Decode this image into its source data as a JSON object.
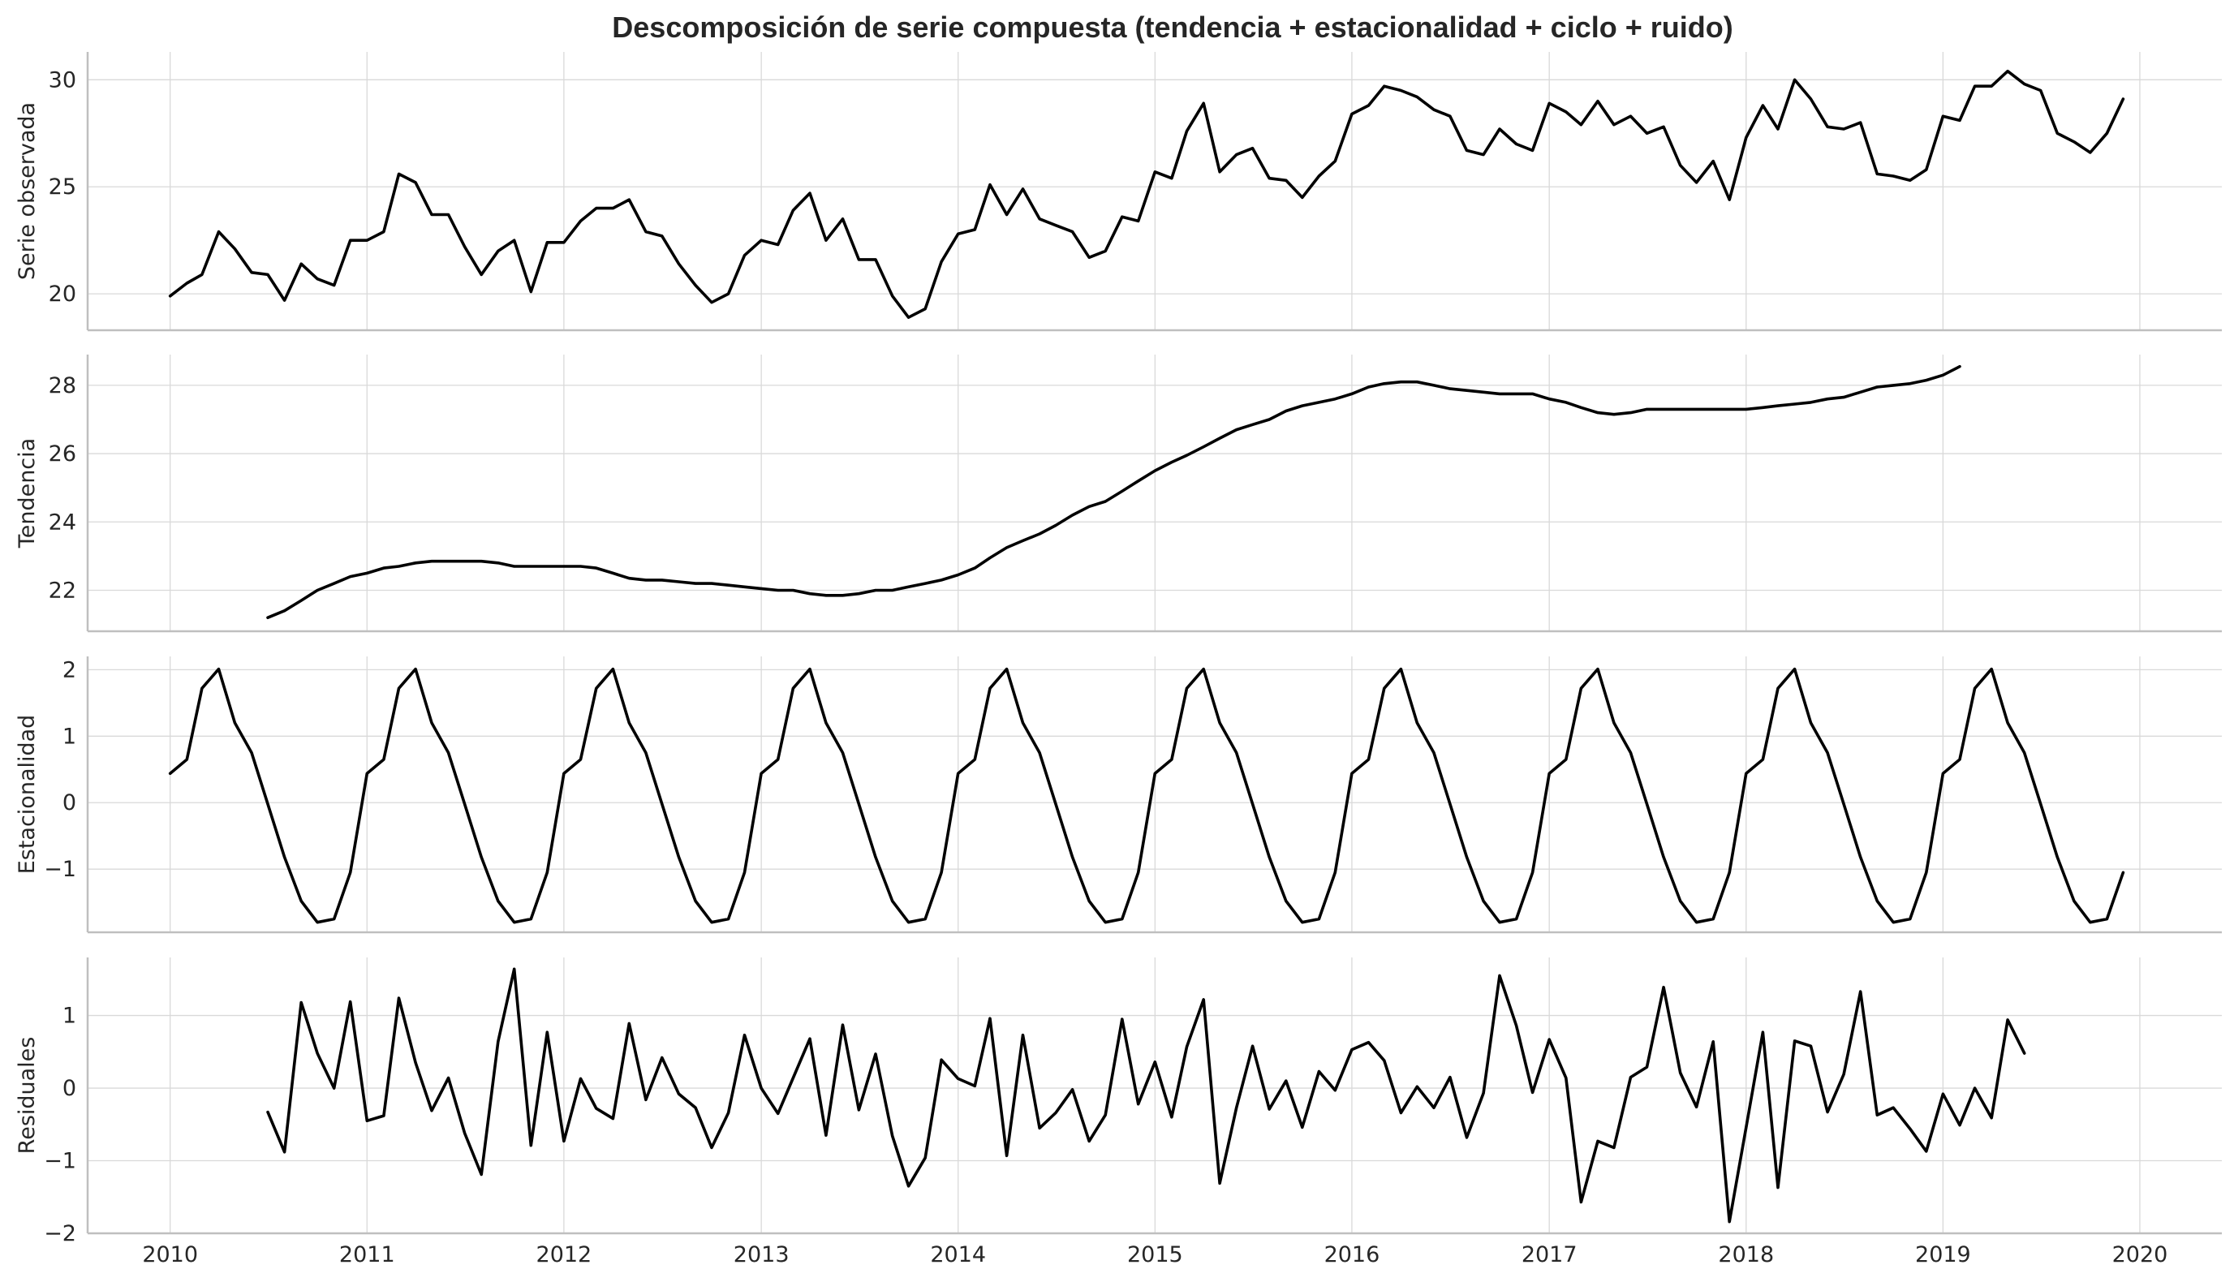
{
  "chart_data": {
    "type": "line",
    "title": "Descomposición de serie compuesta (tendencia + estacionalidad + ciclo + ruido)",
    "x_axis": {
      "type": "date",
      "range": [
        "2009-08-01",
        "2020-06-01"
      ],
      "tick_labels": [
        "2010",
        "2011",
        "2012",
        "2013",
        "2014",
        "2015",
        "2016",
        "2017",
        "2018",
        "2019",
        "2020"
      ],
      "grid": true
    },
    "series_start": "2010-01",
    "frequency": "monthly",
    "panels": [
      {
        "ylabel": "Serie observada",
        "ylim": [
          18.3,
          31.3
        ],
        "yticks": [
          20,
          25,
          30
        ],
        "ytick_labels": [
          "20",
          "25",
          "30"
        ],
        "offset_months": 0,
        "values": [
          19.9,
          20.5,
          20.9,
          22.9,
          22.1,
          21.0,
          20.9,
          19.7,
          21.4,
          20.7,
          20.4,
          22.5,
          22.5,
          22.9,
          25.6,
          25.2,
          23.7,
          23.7,
          22.2,
          20.9,
          22.0,
          22.5,
          20.1,
          22.4,
          22.4,
          23.4,
          24.0,
          24.0,
          24.4,
          22.9,
          22.7,
          21.4,
          20.4,
          19.6,
          20.0,
          21.8,
          22.5,
          22.3,
          23.9,
          24.7,
          22.5,
          23.5,
          21.6,
          21.6,
          19.9,
          18.9,
          19.3,
          21.5,
          22.8,
          23.0,
          25.1,
          23.7,
          24.9,
          23.5,
          23.2,
          22.9,
          21.7,
          22.0,
          23.6,
          23.4,
          25.7,
          25.4,
          27.6,
          28.9,
          25.7,
          26.5,
          26.8,
          25.4,
          25.3,
          24.5,
          25.5,
          26.2,
          28.4,
          28.8,
          29.7,
          29.5,
          29.2,
          28.6,
          28.3,
          26.7,
          26.5,
          27.7,
          27.0,
          26.7,
          28.9,
          28.5,
          27.9,
          29.0,
          27.9,
          28.3,
          27.5,
          27.8,
          26.0,
          25.2,
          26.2,
          24.4,
          27.3,
          28.8,
          27.7,
          30.0,
          29.1,
          27.8,
          27.7,
          28.0,
          25.6,
          25.5,
          25.3,
          25.8,
          28.3,
          28.1,
          29.7,
          29.7,
          30.4,
          29.8,
          29.5,
          27.5,
          27.1,
          26.6,
          27.5,
          29.1
        ]
      },
      {
        "ylabel": "Tendencia",
        "ylim": [
          20.8,
          28.9
        ],
        "yticks": [
          22,
          24,
          26,
          28
        ],
        "ytick_labels": [
          "22",
          "24",
          "26",
          "28"
        ],
        "offset_months": 6,
        "values": [
          21.2,
          21.4,
          21.7,
          22.0,
          22.2,
          22.4,
          22.5,
          22.65,
          22.7,
          22.8,
          22.85,
          22.85,
          22.85,
          22.85,
          22.8,
          22.7,
          22.7,
          22.7,
          22.7,
          22.7,
          22.65,
          22.5,
          22.35,
          22.3,
          22.3,
          22.25,
          22.2,
          22.2,
          22.15,
          22.1,
          22.05,
          22.0,
          22.0,
          21.9,
          21.85,
          21.85,
          21.9,
          22.0,
          22.0,
          22.1,
          22.2,
          22.3,
          22.45,
          22.65,
          22.95,
          23.25,
          23.45,
          23.65,
          23.9,
          24.2,
          24.45,
          24.6,
          24.9,
          25.2,
          25.5,
          25.75,
          25.95,
          26.2,
          26.45,
          26.7,
          26.85,
          27.0,
          27.25,
          27.4,
          27.5,
          27.6,
          27.75,
          27.95,
          28.05,
          28.1,
          28.1,
          28.0,
          27.9,
          27.85,
          27.8,
          27.75,
          27.75,
          27.75,
          27.6,
          27.5,
          27.35,
          27.2,
          27.15,
          27.2,
          27.3,
          27.3,
          27.3,
          27.3,
          27.3,
          27.3,
          27.3,
          27.35,
          27.4,
          27.45,
          27.5,
          27.6,
          27.65,
          27.8,
          27.95,
          28.0,
          28.05,
          28.15,
          28.3,
          28.55
        ]
      },
      {
        "ylabel": "Estacionalidad",
        "ylim": [
          -1.95,
          2.2
        ],
        "yticks": [
          -1,
          0,
          1,
          2
        ],
        "ytick_labels": [
          "−1",
          "0",
          "1",
          "2"
        ],
        "offset_months": 0,
        "values": [
          0.44,
          0.65,
          1.72,
          2.01,
          1.2,
          0.75,
          -0.02,
          -0.82,
          -1.48,
          -1.8,
          -1.75,
          -1.05,
          0.44,
          0.65,
          1.72,
          2.01,
          1.2,
          0.75,
          -0.02,
          -0.82,
          -1.48,
          -1.8,
          -1.75,
          -1.05,
          0.44,
          0.65,
          1.72,
          2.01,
          1.2,
          0.75,
          -0.02,
          -0.82,
          -1.48,
          -1.8,
          -1.75,
          -1.05,
          0.44,
          0.65,
          1.72,
          2.01,
          1.2,
          0.75,
          -0.02,
          -0.82,
          -1.48,
          -1.8,
          -1.75,
          -1.05,
          0.44,
          0.65,
          1.72,
          2.01,
          1.2,
          0.75,
          -0.02,
          -0.82,
          -1.48,
          -1.8,
          -1.75,
          -1.05,
          0.44,
          0.65,
          1.72,
          2.01,
          1.2,
          0.75,
          -0.02,
          -0.82,
          -1.48,
          -1.8,
          -1.75,
          -1.05,
          0.44,
          0.65,
          1.72,
          2.01,
          1.2,
          0.75,
          -0.02,
          -0.82,
          -1.48,
          -1.8,
          -1.75,
          -1.05,
          0.44,
          0.65,
          1.72,
          2.01,
          1.2,
          0.75,
          -0.02,
          -0.82,
          -1.48,
          -1.8,
          -1.75,
          -1.05,
          0.44,
          0.65,
          1.72,
          2.01,
          1.2,
          0.75,
          -0.02,
          -0.82,
          -1.48,
          -1.8,
          -1.75,
          -1.05,
          0.44,
          0.65,
          1.72,
          2.01,
          1.2,
          0.75,
          -0.02,
          -0.82,
          -1.48,
          -1.8,
          -1.75,
          -1.05
        ]
      },
      {
        "ylabel": "Residuales",
        "ylim": [
          -2.0,
          1.8
        ],
        "yticks": [
          -2,
          -1,
          0,
          1
        ],
        "ytick_labels": [
          "−2",
          "−1",
          "0",
          "1"
        ],
        "offset_months": 6,
        "values": [
          -0.33,
          -0.88,
          1.18,
          0.48,
          0.0,
          1.19,
          -0.45,
          -0.38,
          1.24,
          0.35,
          -0.31,
          0.14,
          -0.62,
          -1.19,
          0.64,
          1.64,
          -0.79,
          0.77,
          -0.73,
          0.13,
          -0.28,
          -0.42,
          0.89,
          -0.16,
          0.42,
          -0.08,
          -0.27,
          -0.82,
          -0.34,
          0.73,
          0.0,
          -0.35,
          0.14,
          0.68,
          -0.65,
          0.87,
          -0.3,
          0.47,
          -0.66,
          -1.35,
          -0.96,
          0.39,
          0.13,
          0.03,
          0.96,
          -0.93,
          0.73,
          -0.55,
          -0.34,
          -0.02,
          -0.73,
          -0.37,
          0.95,
          -0.22,
          0.36,
          -0.4,
          0.57,
          1.22,
          -1.31,
          -0.27,
          0.58,
          -0.29,
          0.1,
          -0.54,
          0.23,
          -0.03,
          0.53,
          0.63,
          0.38,
          -0.34,
          0.02,
          -0.27,
          0.15,
          -0.68,
          -0.07,
          1.55,
          0.86,
          -0.06,
          0.67,
          0.14,
          -1.57,
          -0.73,
          -0.82,
          0.15,
          0.29,
          1.39,
          0.21,
          -0.26,
          0.64,
          -1.84,
          -0.54,
          0.77,
          -1.37,
          0.65,
          0.58,
          -0.33,
          0.19,
          1.33,
          -0.37,
          -0.27,
          -0.56,
          -0.87,
          -0.08,
          -0.51,
          0.0,
          -0.41,
          0.94,
          0.48
        ]
      }
    ]
  }
}
